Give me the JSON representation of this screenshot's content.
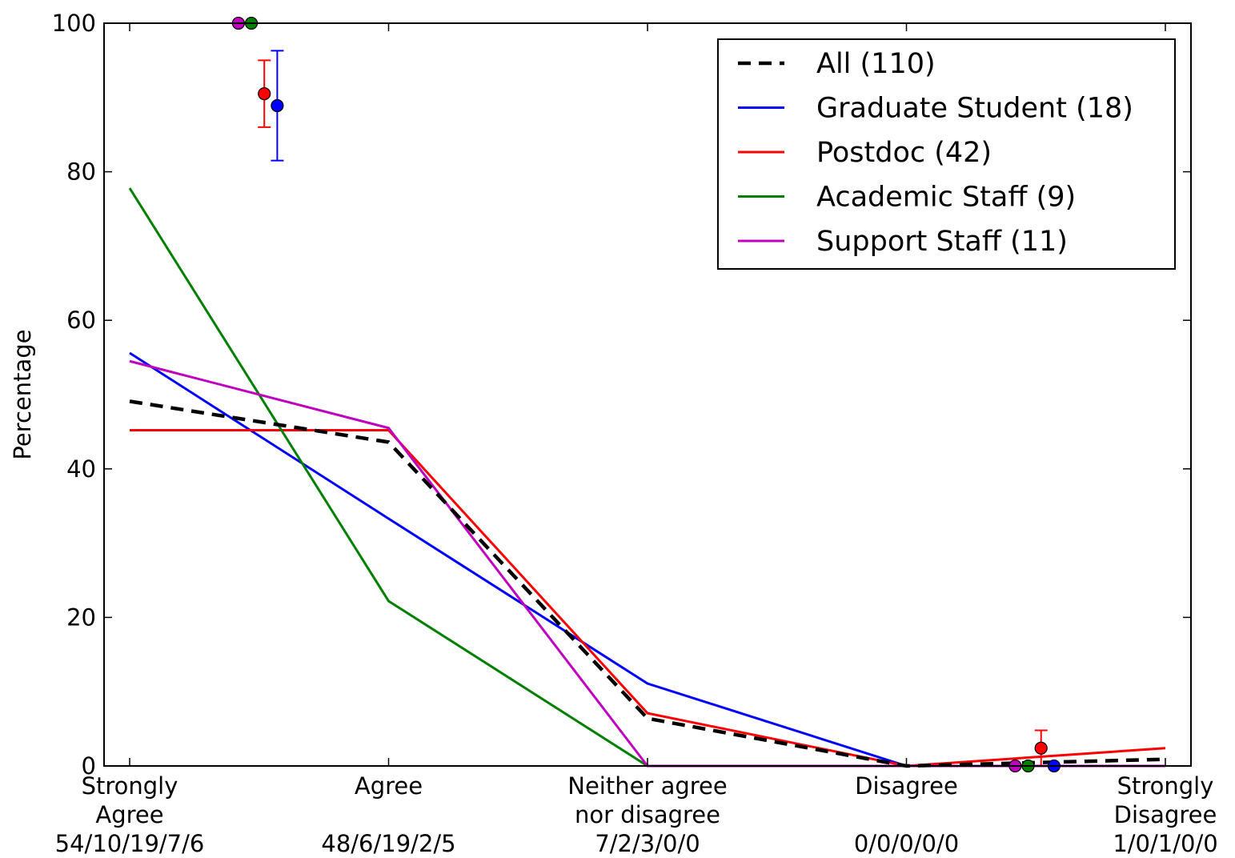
{
  "chart_data": {
    "type": "line",
    "ylabel": "Percentage",
    "xlabel": "",
    "title": "",
    "ylim": [
      0,
      100
    ],
    "yticks": [
      0,
      20,
      40,
      60,
      80,
      100
    ],
    "ytick_labels": [
      "0",
      "20",
      "40",
      "60",
      "80",
      "100"
    ],
    "xlim": [
      0,
      4
    ],
    "categories": [
      {
        "lines": [
          "Strongly",
          "Agree",
          "54/10/19/7/6"
        ]
      },
      {
        "lines": [
          "Agree",
          "",
          "48/6/19/2/5"
        ]
      },
      {
        "lines": [
          "Neither agree",
          "nor disagree",
          "7/2/3/0/0"
        ]
      },
      {
        "lines": [
          "Disagree",
          "",
          "0/0/0/0/0"
        ]
      },
      {
        "lines": [
          "Strongly",
          "Disagree",
          "1/0/1/0/0"
        ]
      }
    ],
    "series": [
      {
        "name": "All (110)",
        "color": "#000000",
        "dashed": true,
        "values": [
          49.1,
          43.6,
          6.4,
          0.0,
          0.9
        ]
      },
      {
        "name": "Graduate Student (18)",
        "color": "#0000ff",
        "dashed": false,
        "values": [
          55.6,
          33.3,
          11.1,
          0.0,
          0.0
        ]
      },
      {
        "name": "Postdoc (42)",
        "color": "#ff0000",
        "dashed": false,
        "values": [
          45.2,
          45.2,
          7.1,
          0.0,
          2.4
        ]
      },
      {
        "name": "Academic Staff (9)",
        "color": "#008000",
        "dashed": false,
        "values": [
          77.8,
          22.2,
          0.0,
          0.0,
          0.0
        ]
      },
      {
        "name": "Support Staff (11)",
        "color": "#bf00bf",
        "dashed": false,
        "values": [
          54.5,
          45.5,
          0.0,
          0.0,
          0.0
        ]
      }
    ],
    "summary_points": [
      {
        "series": "Support Staff (11)",
        "color": "#bf00bf",
        "x": 0.42,
        "y": 100.0,
        "err_low": 0,
        "err_high": 0
      },
      {
        "series": "Academic Staff (9)",
        "color": "#008000",
        "x": 0.47,
        "y": 100.0,
        "err_low": 0,
        "err_high": 0
      },
      {
        "series": "Postdoc (42)",
        "color": "#ff0000",
        "x": 0.52,
        "y": 90.5,
        "err_low": 4.5,
        "err_high": 4.5
      },
      {
        "series": "Graduate Student (18)",
        "color": "#0000ff",
        "x": 0.57,
        "y": 88.9,
        "err_low": 7.4,
        "err_high": 7.4
      },
      {
        "series": "Support Staff (11)",
        "color": "#bf00bf",
        "x": 3.42,
        "y": 0.0,
        "err_low": 0,
        "err_high": 0
      },
      {
        "series": "Academic Staff (9)",
        "color": "#008000",
        "x": 3.47,
        "y": 0.0,
        "err_low": 0,
        "err_high": 0
      },
      {
        "series": "Postdoc (42)",
        "color": "#ff0000",
        "x": 3.52,
        "y": 2.4,
        "err_low": 2.4,
        "err_high": 2.4
      },
      {
        "series": "Graduate Student (18)",
        "color": "#0000ff",
        "x": 3.57,
        "y": 0.0,
        "err_low": 0,
        "err_high": 0
      }
    ],
    "legend": {
      "placement": "top-right"
    },
    "grid": false
  }
}
